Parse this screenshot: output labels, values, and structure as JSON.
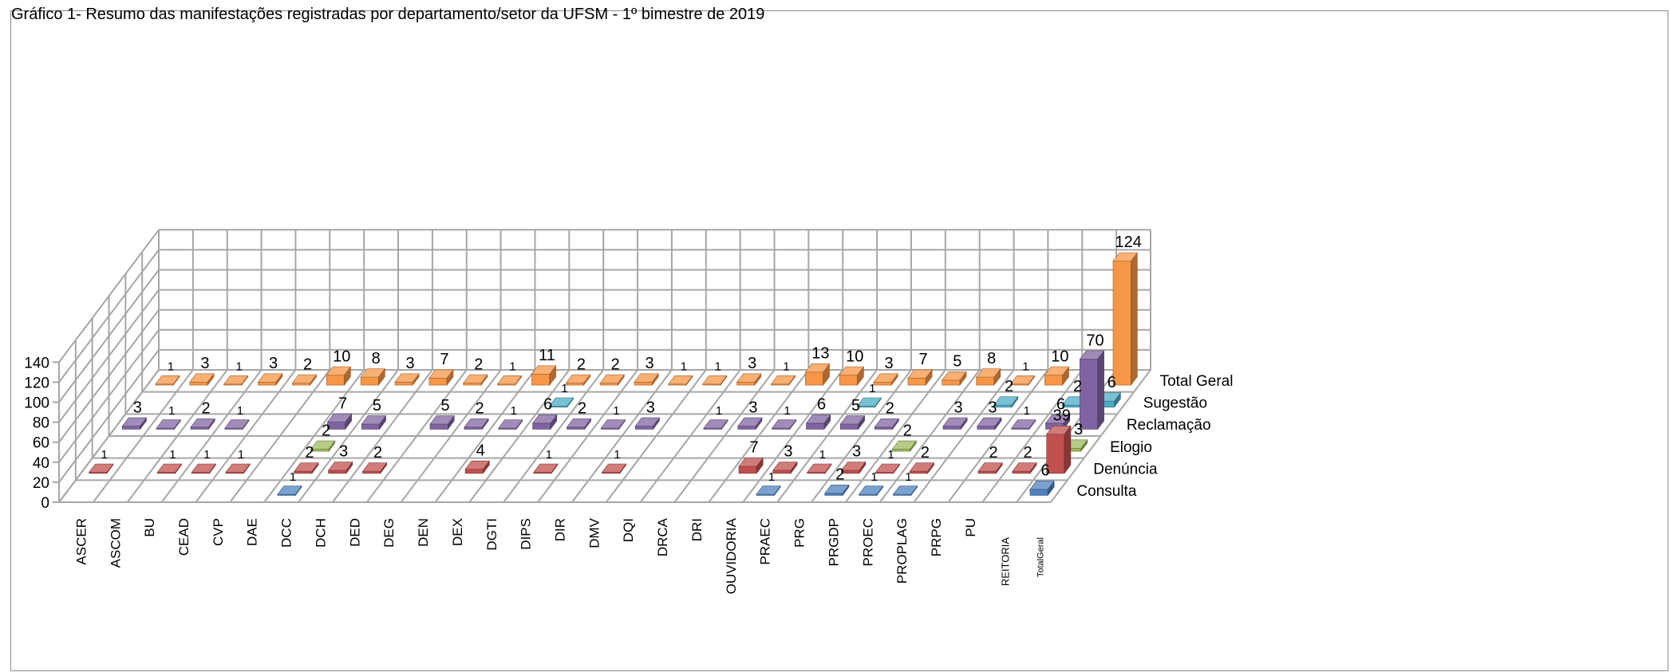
{
  "chart_data": {
    "type": "bar",
    "title": "Gráfico 1- Resumo das manifestações registradas por departamento/setor da UFSM  - 1º bimestre de 2019",
    "categories": [
      "ASCER",
      "ASCOM",
      "BU",
      "CEAD",
      "CVP",
      "DAE",
      "DCC",
      "DCH",
      "DED",
      "DEG",
      "DEN",
      "DEX",
      "DGTI",
      "DIPS",
      "DIR",
      "DMV",
      "DQI",
      "DRCA",
      "DRI",
      "OUVIDORIA",
      "PRAEC",
      "PRG",
      "PRGDP",
      "PROEC",
      "PROPLAG",
      "PRPG",
      "PU",
      "REITORIA",
      "TotalGeral"
    ],
    "y_ticks": [
      "0",
      "20",
      "40",
      "60",
      "80",
      "100",
      "120",
      "140"
    ],
    "ylim": [
      0,
      140
    ],
    "series": [
      {
        "name": "Consulta",
        "color": "#4f81bd",
        "values": [
          null,
          null,
          null,
          null,
          null,
          null,
          1,
          null,
          null,
          null,
          null,
          null,
          null,
          null,
          null,
          null,
          null,
          null,
          null,
          null,
          1,
          null,
          2,
          1,
          1,
          null,
          null,
          null,
          6
        ]
      },
      {
        "name": "Denúncia",
        "color": "#c0504d",
        "values": [
          1,
          null,
          1,
          1,
          1,
          null,
          2,
          3,
          2,
          null,
          null,
          4,
          null,
          1,
          null,
          1,
          null,
          null,
          null,
          7,
          3,
          1,
          3,
          1,
          2,
          null,
          2,
          2,
          39
        ]
      },
      {
        "name": "Elogio",
        "color": "#9bbb59",
        "values": [
          null,
          null,
          null,
          null,
          null,
          null,
          2,
          null,
          null,
          null,
          null,
          null,
          null,
          null,
          null,
          null,
          null,
          null,
          null,
          null,
          null,
          null,
          null,
          2,
          null,
          null,
          null,
          null,
          3
        ]
      },
      {
        "name": "Reclamação",
        "color": "#8064a2",
        "values": [
          3,
          1,
          2,
          1,
          null,
          null,
          7,
          5,
          null,
          5,
          2,
          1,
          6,
          2,
          1,
          3,
          null,
          1,
          3,
          1,
          6,
          5,
          2,
          null,
          3,
          3,
          1,
          6,
          70
        ]
      },
      {
        "name": "Sugestão",
        "color": "#4bacc6",
        "values": [
          null,
          null,
          null,
          null,
          null,
          null,
          null,
          null,
          null,
          null,
          null,
          null,
          1,
          null,
          null,
          null,
          null,
          null,
          null,
          null,
          null,
          1,
          null,
          null,
          null,
          2,
          null,
          2,
          6
        ]
      },
      {
        "name": "Total Geral",
        "color": "#f79646",
        "values": [
          1,
          3,
          1,
          3,
          2,
          10,
          8,
          3,
          7,
          2,
          1,
          11,
          2,
          2,
          3,
          1,
          1,
          3,
          1,
          13,
          10,
          3,
          7,
          5,
          8,
          1,
          10,
          null,
          124
        ]
      }
    ],
    "grid": true,
    "legend": "right-depth"
  }
}
